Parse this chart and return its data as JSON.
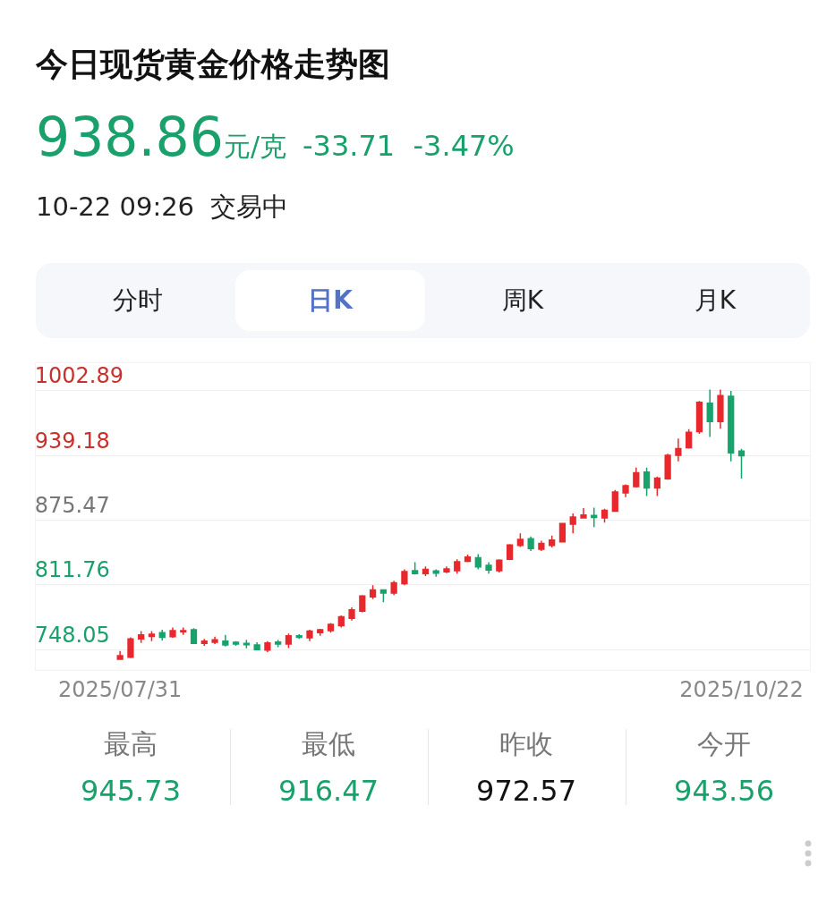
{
  "chart_data": {
    "type": "candlestick",
    "title": "今日现货黄金价格走势图",
    "annotations": [
      "938.86",
      "元/克",
      "-33.71",
      "-3.47%",
      "10-22 09:26",
      "交易中",
      "分时",
      "日K",
      "周K",
      "月K",
      "最高",
      "945.73",
      "最低",
      "916.47",
      "昨收",
      "972.57",
      "今开",
      "943.56"
    ],
    "categories": [
      "2025/07/31",
      null,
      null,
      null,
      null,
      null,
      null,
      null,
      null,
      null,
      null,
      null,
      null,
      null,
      null,
      null,
      null,
      null,
      null,
      null,
      null,
      null,
      null,
      null,
      null,
      null,
      null,
      null,
      null,
      null,
      null,
      null,
      null,
      null,
      null,
      null,
      null,
      null,
      null,
      null,
      null,
      null,
      null,
      null,
      null,
      null,
      null,
      null,
      null,
      null,
      null,
      null,
      null,
      null,
      null,
      null,
      null,
      null,
      null,
      "2025/10/22"
    ],
    "ohlc": [
      [
        738.5,
        746.6,
        737.9,
        742.1
      ],
      [
        740.6,
        760.2,
        739.7,
        758.7
      ],
      [
        758.7,
        766.2,
        754.7,
        762.6
      ],
      [
        761.1,
        766.2,
        756.5,
        763.2
      ],
      [
        764.7,
        767.7,
        757.1,
        760.2
      ],
      [
        760.8,
        769.8,
        759.6,
        766.8
      ],
      [
        765.6,
        769.8,
        762.6,
        766.8
      ],
      [
        767.7,
        769.2,
        753.5,
        754.1
      ],
      [
        754.1,
        758.7,
        751.7,
        756.5
      ],
      [
        755.3,
        760.8,
        753.5,
        757.7
      ],
      [
        756.5,
        762.6,
        751.1,
        752.6
      ],
      [
        755.3,
        756.5,
        751.7,
        753.5
      ],
      [
        754.1,
        757.7,
        749.3,
        752.9
      ],
      [
        752.6,
        755.3,
        747.5,
        748.1
      ],
      [
        747.5,
        756.5,
        745.7,
        754.7
      ],
      [
        755.6,
        757.7,
        750.5,
        753.5
      ],
      [
        753.5,
        763.8,
        749.6,
        761.7
      ],
      [
        761.7,
        763.2,
        758.7,
        760.2
      ],
      [
        759.6,
        767.7,
        756.5,
        766.2
      ],
      [
        764.7,
        768.6,
        761.7,
        767.7
      ],
      [
        766.8,
        774.3,
        764.7,
        772.8
      ],
      [
        771.6,
        781.8,
        769.8,
        780.3
      ],
      [
        778.8,
        789.7,
        776.7,
        787.3
      ],
      [
        785.8,
        801.7,
        784.9,
        800.8
      ],
      [
        799.9,
        811.4,
        797.8,
        806.8
      ],
      [
        806.8,
        806.8,
        794.8,
        803.8
      ],
      [
        803.8,
        815.9,
        801.7,
        813.8
      ],
      [
        812.9,
        827.0,
        811.4,
        824.9
      ],
      [
        825.8,
        834.0,
        821.9,
        822.8
      ],
      [
        822.8,
        830.0,
        820.4,
        827.0
      ],
      [
        825.5,
        827.0,
        819.8,
        823.4
      ],
      [
        824.6,
        830.0,
        823.4,
        827.6
      ],
      [
        825.8,
        837.0,
        822.8,
        834.6
      ],
      [
        834.9,
        841.5,
        834.0,
        839.1
      ],
      [
        838.5,
        842.1,
        827.0,
        829.4
      ],
      [
        831.0,
        834.0,
        822.8,
        826.4
      ],
      [
        825.8,
        837.0,
        824.0,
        836.1
      ],
      [
        837.0,
        852.0,
        836.1,
        851.1
      ],
      [
        850.5,
        862.6,
        849.0,
        856.5
      ],
      [
        857.1,
        859.5,
        845.1,
        847.5
      ],
      [
        846.9,
        855.3,
        845.1,
        852.6
      ],
      [
        850.5,
        860.2,
        848.7,
        855.9
      ],
      [
        854.1,
        872.8,
        853.5,
        872.2
      ],
      [
        871.6,
        882.1,
        862.6,
        878.5
      ],
      [
        877.6,
        887.3,
        877.0,
        880.6
      ],
      [
        880.0,
        887.9,
        868.6,
        878.2
      ],
      [
        877.6,
        886.7,
        873.1,
        885.2
      ],
      [
        884.3,
        905.3,
        883.7,
        903.2
      ],
      [
        902.3,
        910.8,
        898.1,
        909.3
      ],
      [
        908.4,
        927.3,
        907.7,
        922.2
      ],
      [
        922.8,
        927.3,
        899.3,
        907.1
      ],
      [
        907.1,
        918.3,
        899.3,
        916.8
      ],
      [
        916.2,
        940.9,
        915.3,
        939.4
      ],
      [
        939.4,
        955.9,
        933.4,
        946.0
      ],
      [
        946.9,
        965.0,
        946.0,
        962.0
      ],
      [
        962.6,
        992.7,
        960.5,
        991.5
      ],
      [
        990.6,
        1004.1,
        957.4,
        972.5
      ],
      [
        972.5,
        1004.1,
        965.6,
        998.1
      ],
      [
        997.5,
        1002.6,
        933.4,
        941.8
      ],
      [
        943.56,
        945.73,
        916.47,
        938.86
      ]
    ],
    "colors": [
      "#e8282d",
      "#e8282d",
      "#e8282d",
      "#e8282d",
      "#17a36b",
      "#e8282d",
      "#e8282d",
      "#17a36b",
      "#e8282d",
      "#e8282d",
      "#17a36b",
      "#17a36b",
      "#17a36b",
      "#17a36b",
      "#e8282d",
      "#17a36b",
      "#e8282d",
      "#17a36b",
      "#e8282d",
      "#e8282d",
      "#e8282d",
      "#e8282d",
      "#e8282d",
      "#e8282d",
      "#e8282d",
      "#17a36b",
      "#e8282d",
      "#e8282d",
      "#17a36b",
      "#e8282d",
      "#17a36b",
      "#e8282d",
      "#e8282d",
      "#e8282d",
      "#17a36b",
      "#17a36b",
      "#e8282d",
      "#e8282d",
      "#e8282d",
      "#17a36b",
      "#e8282d",
      "#e8282d",
      "#e8282d",
      "#e8282d",
      "#e8282d",
      "#17a36b",
      "#e8282d",
      "#e8282d",
      "#e8282d",
      "#e8282d",
      "#17a36b",
      "#e8282d",
      "#e8282d",
      "#e8282d",
      "#e8282d",
      "#e8282d",
      "#17a36b",
      "#e8282d",
      "#17a36b",
      "#17a36b"
    ],
    "ylim": [
      728,
      1030
    ],
    "yticks": [
      1002.89,
      939.18,
      875.47,
      811.76,
      748.05
    ],
    "grid": "y"
  }
}
